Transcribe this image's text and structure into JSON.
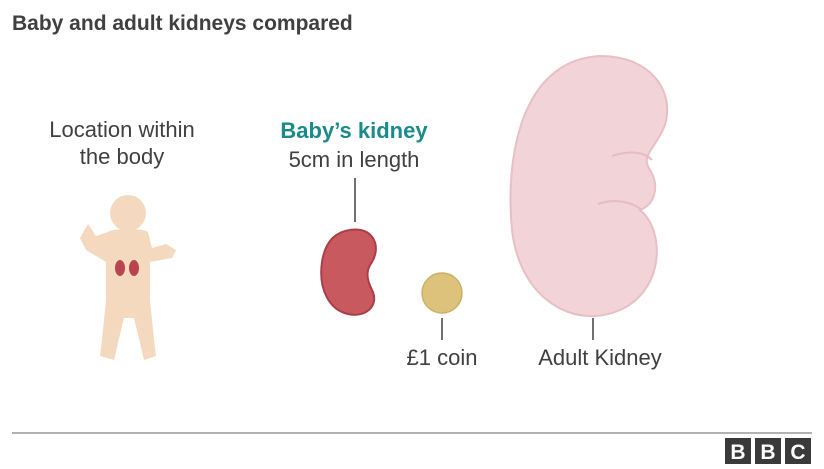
{
  "header": {
    "title": "Baby and adult kidneys compared"
  },
  "location": {
    "lines": [
      "Location within",
      "the body"
    ]
  },
  "baby_kidney": {
    "title": "Baby’s kidney",
    "caption": "5cm in length"
  },
  "coin": {
    "label": "£1 coin"
  },
  "adult_kidney": {
    "label": "Adult Kidney"
  },
  "logo": {
    "letters": [
      "B",
      "B",
      "C"
    ]
  }
}
